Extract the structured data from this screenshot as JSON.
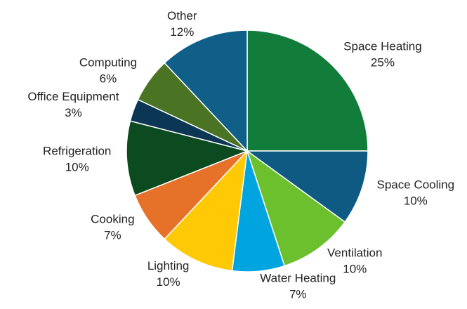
{
  "chart_data": {
    "type": "pie",
    "categories": [
      "Space Heating",
      "Space Cooling",
      "Ventilation",
      "Water Heating",
      "Lighting",
      "Cooking",
      "Refrigeration",
      "Office Equipment",
      "Computing",
      "Other"
    ],
    "values": [
      25,
      10,
      10,
      7,
      10,
      7,
      10,
      3,
      6,
      12
    ],
    "value_labels": [
      "25%",
      "10%",
      "10%",
      "7%",
      "10%",
      "7%",
      "10%",
      "3%",
      "6%",
      "12%"
    ],
    "colors": [
      "#127d3a",
      "#0e5a82",
      "#6cbf2d",
      "#00a5df",
      "#ffc905",
      "#e6722a",
      "#0c4a1f",
      "#0b3654",
      "#4a7423",
      "#0f5f88"
    ]
  }
}
